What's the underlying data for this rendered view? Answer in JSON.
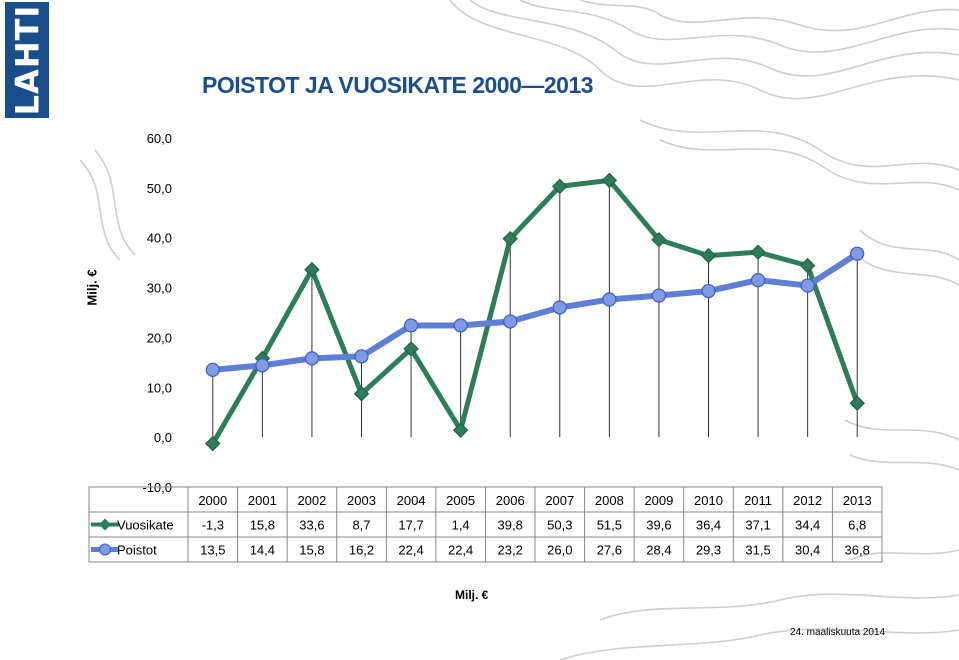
{
  "logo_text": "LAHTI",
  "title": "POISTOT JA VUOSIKATE 2000—2013",
  "date": "24. maaliskuuta 2014",
  "colors": {
    "vuosikate": "#2e7d5a",
    "poistot": "#5f7fd6",
    "title": "#1b4f8c",
    "topo": "#c8c8c8"
  },
  "chart_data": {
    "type": "line",
    "ylabel": "Milj. €",
    "xlabel": "Milj. €",
    "ylim": [
      -10,
      60
    ],
    "yticks": [
      "-10,0",
      "0,0",
      "10,0",
      "20,0",
      "30,0",
      "40,0",
      "50,0",
      "60,0"
    ],
    "yticks_values": [
      -10,
      0,
      10,
      20,
      30,
      40,
      50,
      60
    ],
    "categories": [
      "2000",
      "2001",
      "2002",
      "2003",
      "2004",
      "2005",
      "2006",
      "2007",
      "2008",
      "2009",
      "2010",
      "2011",
      "2012",
      "2013"
    ],
    "grid": false,
    "series": [
      {
        "name": "Vuosikate",
        "values": [
          -1.3,
          15.8,
          33.6,
          8.7,
          17.7,
          1.4,
          39.8,
          50.3,
          51.5,
          39.6,
          36.4,
          37.1,
          34.4,
          6.8
        ],
        "labels": [
          "-1,3",
          "15,8",
          "33,6",
          "8,7",
          "17,7",
          "1,4",
          "39,8",
          "50,3",
          "51,5",
          "39,6",
          "36,4",
          "37,1",
          "34,4",
          "6,8"
        ]
      },
      {
        "name": "Poistot",
        "values": [
          13.5,
          14.4,
          15.8,
          16.2,
          22.4,
          22.4,
          23.2,
          26.0,
          27.6,
          28.4,
          29.3,
          31.5,
          30.4,
          36.8
        ],
        "labels": [
          "13,5",
          "14,4",
          "15,8",
          "16,2",
          "22,4",
          "22,4",
          "23,2",
          "26,0",
          "27,6",
          "28,4",
          "29,3",
          "31,5",
          "30,4",
          "36,8"
        ]
      }
    ]
  }
}
